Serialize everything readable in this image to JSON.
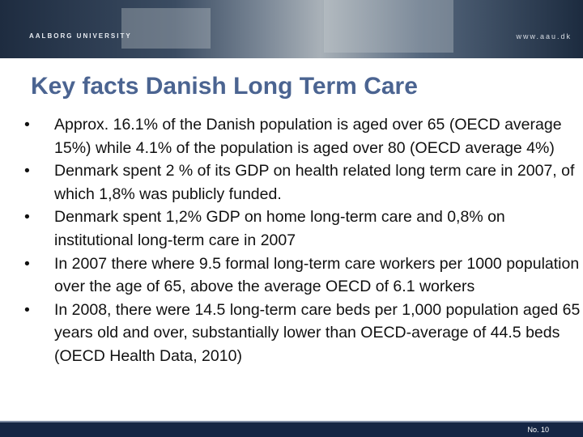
{
  "header": {
    "logo_text": "AALBORG UNIVERSITY",
    "url": "www.aau.dk"
  },
  "title": "Key facts Danish Long Term Care",
  "bullets": [
    "Approx. 16.1% of the Danish population is aged over 65 (OECD average 15%) while 4.1% of the population is aged over 80 (OECD average 4%)",
    "Denmark spent 2 % of its GDP on health related long term care in 2007, of which 1,8% was publicly funded.",
    "Denmark spent 1,2% GDP on home long-term care and 0,8% on institutional long-term care in 2007",
    "In 2007 there where 9.5 formal long-term care workers per 1000 population over the age of 65, above the average OECD of 6.1 workers",
    "In 2008, there were 14.5 long-term care beds per 1,000 population aged 65 years old and over, substantially lower than OECD-average of 44.5 beds (OECD Health Data, 2010)"
  ],
  "footer": {
    "page": "No. 10"
  }
}
